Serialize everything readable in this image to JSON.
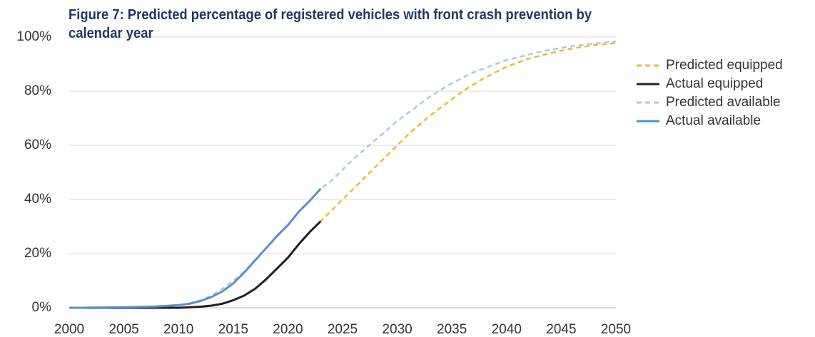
{
  "chart_data": {
    "type": "line",
    "title": "Figure 7: Predicted percentage of registered vehicles with front crash prevention by calendar year",
    "x": [
      2000,
      2001,
      2002,
      2003,
      2004,
      2005,
      2006,
      2007,
      2008,
      2009,
      2010,
      2011,
      2012,
      2013,
      2014,
      2015,
      2016,
      2017,
      2018,
      2019,
      2020,
      2021,
      2022,
      2023,
      2024,
      2025,
      2026,
      2027,
      2028,
      2029,
      2030,
      2031,
      2032,
      2033,
      2034,
      2035,
      2036,
      2037,
      2038,
      2039,
      2040,
      2041,
      2042,
      2043,
      2044,
      2045,
      2046,
      2047,
      2048,
      2049,
      2050
    ],
    "series": [
      {
        "name": "Predicted equipped",
        "color": "#f5b82e",
        "dashed": true,
        "values": [
          0,
          0,
          0,
          0,
          0,
          0,
          0,
          0,
          0,
          0,
          0,
          0.2,
          0.4,
          0.8,
          1.5,
          2.8,
          4.5,
          7,
          10.5,
          14.5,
          18.5,
          23.5,
          28,
          32,
          36,
          40,
          44,
          48,
          52,
          56,
          60,
          64,
          67.5,
          71,
          74,
          77,
          80,
          82.5,
          85,
          87,
          89,
          90.5,
          92,
          93,
          94,
          95,
          95.8,
          96.4,
          97,
          97.4,
          97.8
        ]
      },
      {
        "name": "Actual equipped",
        "color": "#231f20",
        "dashed": false,
        "values": [
          0,
          0,
          0,
          0,
          0,
          0,
          0,
          0,
          0,
          0,
          0,
          0.2,
          0.4,
          0.8,
          1.5,
          2.8,
          4.5,
          7,
          10.5,
          14.5,
          18.5,
          23.5,
          28,
          32,
          null,
          null,
          null,
          null,
          null,
          null,
          null,
          null,
          null,
          null,
          null,
          null,
          null,
          null,
          null,
          null,
          null,
          null,
          null,
          null,
          null,
          null,
          null,
          null,
          null,
          null,
          null
        ]
      },
      {
        "name": "Predicted available",
        "color": "#a9cbe4",
        "dashed": true,
        "values": [
          0,
          0,
          0.1,
          0.1,
          0.2,
          0.2,
          0.3,
          0.4,
          0.5,
          0.7,
          1,
          1.6,
          2.8,
          4.5,
          7,
          10,
          13.5,
          17.5,
          22,
          26.5,
          30.5,
          35.5,
          39.5,
          44,
          47,
          51,
          55,
          58.5,
          62,
          65.5,
          69,
          72,
          75,
          78,
          80.5,
          83,
          85,
          87,
          88.5,
          90,
          91.5,
          92.5,
          93.5,
          94.5,
          95.3,
          96,
          96.6,
          97.1,
          97.6,
          98,
          98.4
        ]
      },
      {
        "name": "Actual available",
        "color": "#5b8fc9",
        "dashed": false,
        "values": [
          0,
          0,
          0.1,
          0.1,
          0.2,
          0.2,
          0.3,
          0.4,
          0.5,
          0.7,
          1,
          1.5,
          2.5,
          4,
          6,
          9,
          13,
          17.5,
          22,
          26.5,
          30.5,
          35.5,
          39.5,
          44,
          null,
          null,
          null,
          null,
          null,
          null,
          null,
          null,
          null,
          null,
          null,
          null,
          null,
          null,
          null,
          null,
          null,
          null,
          null,
          null,
          null,
          null,
          null,
          null,
          null,
          null,
          null
        ]
      }
    ],
    "xlim": [
      2000,
      2050
    ],
    "xticks": [
      2000,
      2005,
      2010,
      2015,
      2020,
      2025,
      2030,
      2035,
      2040,
      2045,
      2050
    ],
    "ylim": [
      0,
      100
    ],
    "yticks": [
      {
        "value": 0,
        "label": "0%"
      },
      {
        "value": 20,
        "label": "20%"
      },
      {
        "value": 40,
        "label": "40%"
      },
      {
        "value": 60,
        "label": "60%"
      },
      {
        "value": 80,
        "label": "80%"
      },
      {
        "value": 100,
        "label": "100%"
      }
    ],
    "grid": true,
    "legend": "right"
  }
}
